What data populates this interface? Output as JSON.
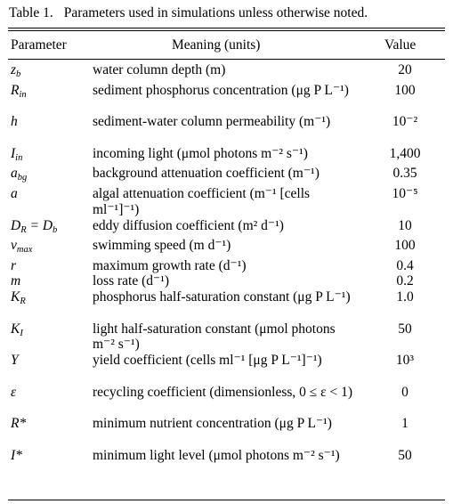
{
  "caption": {
    "label": "Table 1.",
    "text": "Parameters used in simulations unless otherwise noted."
  },
  "headers": {
    "parameter": "Parameter",
    "meaning": "Meaning (units)",
    "value": "Value"
  },
  "rows": [
    {
      "symbol": "z",
      "sub": "b",
      "tail": "",
      "meaning": "water column depth (m)",
      "value": "20"
    },
    {
      "symbol": "R",
      "sub": "in",
      "tail": "",
      "meaning": "sediment phosphorus concentration (μg P L⁻¹)",
      "value": "100"
    },
    {
      "symbol": "h",
      "sub": "",
      "tail": "",
      "meaning": "sediment-water column permeability (m⁻¹)",
      "value": "10⁻²"
    },
    {
      "symbol": "I",
      "sub": "in",
      "tail": "",
      "meaning": "incoming light (μmol photons m⁻² s⁻¹)",
      "value": "1,400"
    },
    {
      "symbol": "a",
      "sub": "bg",
      "tail": "",
      "meaning": "background attenuation coefficient (m⁻¹)",
      "value": "0.35"
    },
    {
      "symbol": "a",
      "sub": "",
      "tail": "",
      "meaning": "algal attenuation coefficient (m⁻¹ [cells ml⁻¹]⁻¹)",
      "value": "10⁻⁵"
    },
    {
      "symbol": "D",
      "sub": "R",
      "tail": " = D",
      "tail_sub": "b",
      "meaning": "eddy diffusion coefficient (m² d⁻¹)",
      "value": "10"
    },
    {
      "symbol": "v",
      "sub": "max",
      "tail": "",
      "meaning": "swimming speed (m d⁻¹)",
      "value": "100"
    },
    {
      "symbol": "r",
      "sub": "",
      "tail": "",
      "meaning": "maximum growth rate (d⁻¹)",
      "value": "0.4"
    },
    {
      "symbol": "m",
      "sub": "",
      "tail": "",
      "meaning": "loss rate (d⁻¹)",
      "value": "0.2"
    },
    {
      "symbol": "K",
      "sub": "R",
      "tail": "",
      "meaning": "phosphorus half-saturation constant (μg P L⁻¹)",
      "value": "1.0"
    },
    {
      "symbol": "K",
      "sub": "I",
      "tail": "",
      "meaning": "light half-saturation constant (μmol photons m⁻² s⁻¹)",
      "value": "50"
    },
    {
      "symbol": "Y",
      "sub": "",
      "tail": "",
      "meaning": "yield coefficient (cells ml⁻¹ [μg P L⁻¹]⁻¹)",
      "value": "10³"
    },
    {
      "symbol": "ε",
      "sub": "",
      "tail": "",
      "meaning": "recycling coefficient (dimensionless, 0 ≤ ε < 1)",
      "value": "0"
    },
    {
      "symbol": "R*",
      "sub": "",
      "tail": "",
      "meaning": "minimum nutrient concentration (μg P L⁻¹)",
      "value": "1"
    },
    {
      "symbol": "I*",
      "sub": "",
      "tail": "",
      "meaning": "minimum light level (μmol photons m⁻² s⁻¹)",
      "value": "50"
    }
  ]
}
